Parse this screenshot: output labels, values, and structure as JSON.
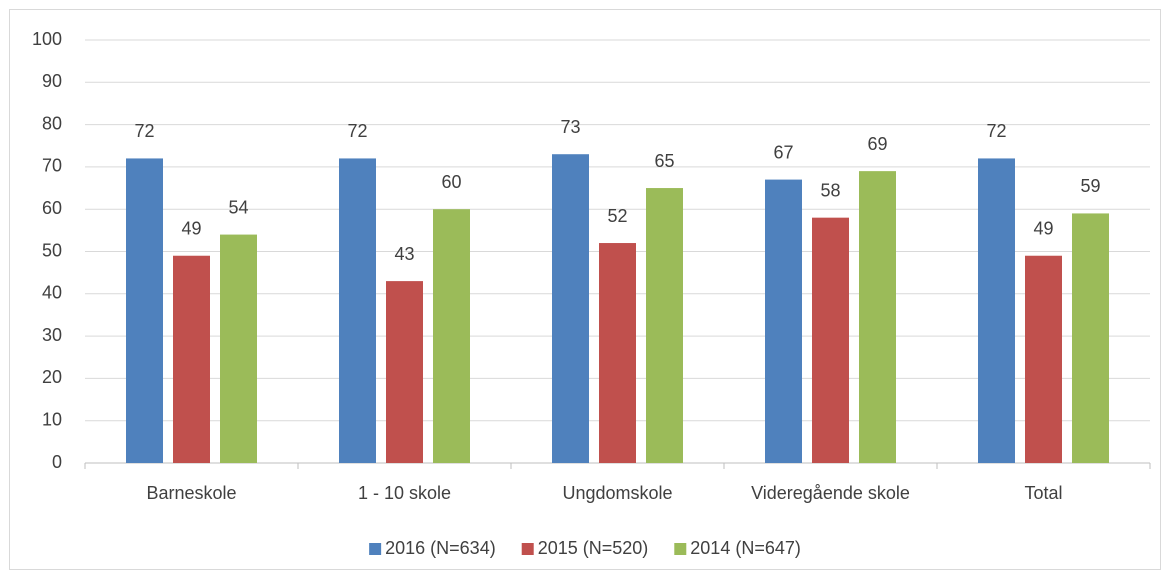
{
  "chart_data": {
    "type": "bar",
    "categories": [
      "Barneskole",
      "1 - 10 skole",
      "Ungdomskole",
      "Videregående skole",
      "Total"
    ],
    "series": [
      {
        "name": "2016 (N=634)",
        "color": "#4f81bd",
        "values": [
          72,
          72,
          73,
          67,
          72
        ]
      },
      {
        "name": "2015 (N=520)",
        "color": "#c0504d",
        "values": [
          49,
          43,
          52,
          58,
          49
        ]
      },
      {
        "name": "2014 (N=647)",
        "color": "#9bbb59",
        "values": [
          54,
          60,
          65,
          69,
          59
        ]
      }
    ],
    "ylim": [
      0,
      100
    ],
    "yticks": [
      0,
      10,
      20,
      30,
      40,
      50,
      60,
      70,
      80,
      90,
      100
    ],
    "grid": true,
    "legend": "bottom"
  }
}
